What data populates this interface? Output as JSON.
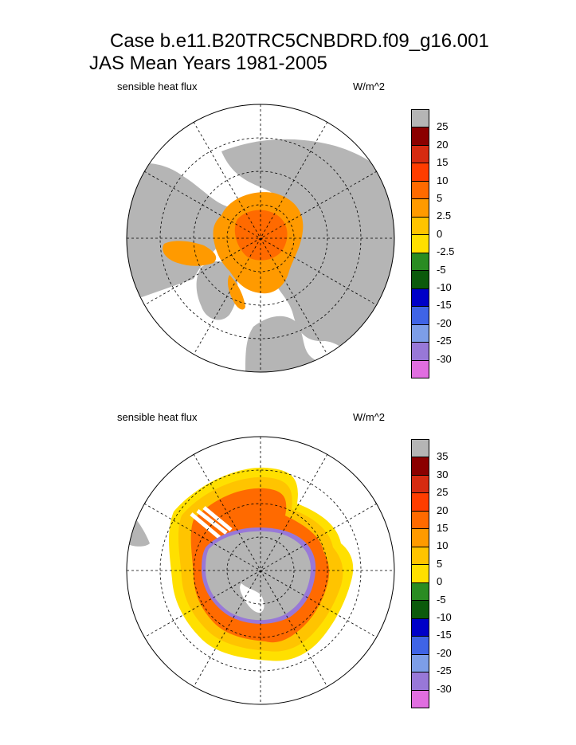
{
  "figure": {
    "title_line1": "Case b.e11.B20TRC5CNBDRD.f09_g16.001",
    "title_line2": "JAS Mean   Years 1981-2005"
  },
  "panels": [
    {
      "id": "north",
      "variable_label": "sensible heat flux",
      "units_label": "W/m^2",
      "colorbar": {
        "labels": [
          "25",
          "20",
          "15",
          "10",
          "5",
          "2.5",
          "0",
          "-2.5",
          "-5",
          "-10",
          "-15",
          "-20",
          "-25",
          "-30"
        ],
        "colors": [
          "#b5b5b5",
          "#8b0000",
          "#d62b11",
          "#ff3d00",
          "#ff6a00",
          "#ff9a00",
          "#ffc400",
          "#ffe000",
          "#2a8c22",
          "#0c5a0c",
          "#0000c8",
          "#3f64e6",
          "#7d9ee8",
          "#9878d8",
          "#e06ee0"
        ]
      }
    },
    {
      "id": "south",
      "variable_label": "sensible heat flux",
      "units_label": "W/m^2",
      "colorbar": {
        "labels": [
          "35",
          "30",
          "25",
          "20",
          "15",
          "10",
          "5",
          "0",
          "-5",
          "-10",
          "-15",
          "-20",
          "-25",
          "-30"
        ],
        "colors": [
          "#b5b5b5",
          "#8b0000",
          "#d62b11",
          "#ff3d00",
          "#ff6a00",
          "#ff9a00",
          "#ffc400",
          "#ffe000",
          "#2a8c22",
          "#0c5a0c",
          "#0000c8",
          "#3f64e6",
          "#7d9ee8",
          "#9878d8",
          "#e06ee0"
        ]
      }
    }
  ],
  "map_colors": {
    "land": "#b5b5b5",
    "north_ice_main": "#ff9a00",
    "north_ice_inner": "#ff6a00",
    "south_ring_outer": "#ffe000",
    "south_ring_mid": "#ffc400",
    "south_ring_inner": "#ff6a00",
    "south_coast_negative": "#9878d8"
  }
}
